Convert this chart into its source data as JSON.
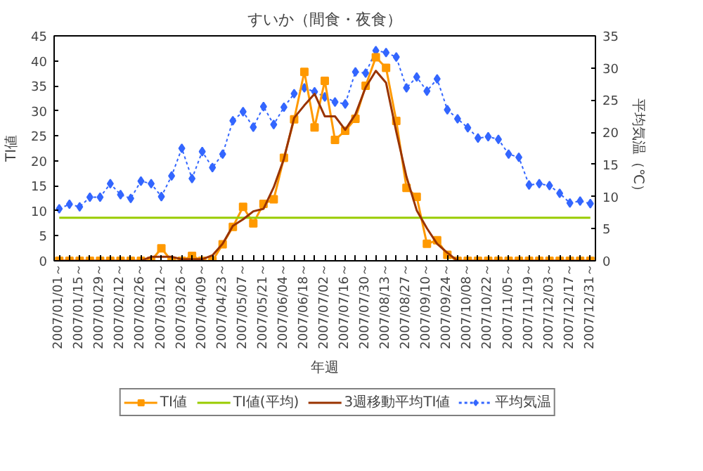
{
  "chart_data": {
    "type": "line",
    "title": "すいか（間食・夜食）",
    "xlabel": "年週",
    "ylabel": "TI値",
    "y2label": "平均気温（℃）",
    "categories": [
      "2007/01/01～",
      null,
      "2007/01/15～",
      null,
      "2007/01/29～",
      null,
      "2007/02/12～",
      null,
      "2007/02/26～",
      null,
      "2007/03/12～",
      null,
      "2007/03/26～",
      null,
      "2007/04/09～",
      null,
      "2007/04/23～",
      null,
      "2007/05/07～",
      null,
      "2007/05/21～",
      null,
      "2007/06/04～",
      null,
      "2007/06/18～",
      null,
      "2007/07/02～",
      null,
      "2007/07/16～",
      null,
      "2007/07/30～",
      null,
      "2007/08/13～",
      null,
      "2007/08/27～",
      null,
      "2007/09/10～",
      null,
      "2007/09/24～",
      null,
      "2007/10/08～",
      null,
      "2007/10/22～",
      null,
      "2007/11/05～",
      null,
      "2007/11/19～",
      null,
      "2007/12/03～",
      null,
      "2007/12/17～",
      null,
      "2007/12/31～"
    ],
    "series": [
      {
        "name": "TI値",
        "color": "#ff9900",
        "marker": "square",
        "line_style": "solid",
        "values": [
          0,
          0,
          0,
          0,
          0,
          0,
          0,
          0,
          0,
          0,
          2.5,
          0,
          0,
          1.0,
          0,
          0,
          3.3,
          6.8,
          10.8,
          7.5,
          11.4,
          12.3,
          20.6,
          28.3,
          37.8,
          26.7,
          36.0,
          24.2,
          26.0,
          28.4,
          35.0,
          40.7,
          38.6,
          28.0,
          14.6,
          12.8,
          3.4,
          4.1,
          1.2,
          0,
          0,
          0,
          0,
          0,
          0,
          0,
          0,
          0,
          0,
          0,
          0,
          0,
          0
        ]
      },
      {
        "name": "TI値(平均)",
        "color": "#99cc00",
        "marker": "none",
        "line_style": "solid",
        "values": [
          8.6,
          8.6,
          8.6,
          8.6,
          8.6,
          8.6,
          8.6,
          8.6,
          8.6,
          8.6,
          8.6,
          8.6,
          8.6,
          8.6,
          8.6,
          8.6,
          8.6,
          8.6,
          8.6,
          8.6,
          8.6,
          8.6,
          8.6,
          8.6,
          8.6,
          8.6,
          8.6,
          8.6,
          8.6,
          8.6,
          8.6,
          8.6,
          8.6,
          8.6,
          8.6,
          8.6,
          8.6,
          8.6,
          8.6,
          8.6,
          8.6,
          8.6,
          8.6,
          8.6,
          8.6,
          8.6,
          8.6,
          8.6,
          8.6,
          8.6,
          8.6,
          8.6,
          8.6
        ]
      },
      {
        "name": "3週移動平均TI値",
        "color": "#993300",
        "marker": "none",
        "line_style": "solid",
        "values": [
          0,
          0,
          0,
          0,
          0,
          0,
          0,
          0,
          0,
          0.8,
          0.8,
          0.8,
          0.3,
          0.3,
          0.3,
          1.1,
          3.4,
          7.0,
          8.3,
          9.9,
          10.4,
          14.7,
          20.4,
          28.6,
          31.1,
          33.4,
          28.9,
          28.9,
          26.2,
          29.3,
          34.7,
          38.0,
          35.6,
          25.8,
          16.8,
          10.1,
          6.5,
          3.4,
          1.6,
          0,
          0,
          0,
          0,
          0,
          0,
          0,
          0,
          0,
          0,
          0,
          0,
          0,
          0
        ]
      },
      {
        "name": "平均気温",
        "color": "#3366ff",
        "marker": "diamond",
        "line_style": "dotted",
        "axis": "y2",
        "values": [
          8.1,
          8.8,
          8.4,
          9.9,
          9.9,
          12.0,
          10.3,
          9.7,
          12.4,
          12.0,
          10.0,
          13.2,
          17.5,
          12.8,
          17.0,
          14.5,
          16.6,
          21.8,
          23.2,
          20.8,
          24.0,
          21.2,
          23.9,
          26.0,
          26.9,
          26.3,
          25.5,
          24.7,
          24.4,
          29.4,
          29.2,
          32.7,
          32.4,
          31.7,
          26.9,
          28.6,
          26.4,
          28.3,
          23.5,
          22.1,
          20.7,
          19.1,
          19.3,
          18.9,
          16.6,
          16.1,
          11.8,
          12.0,
          11.7,
          10.5,
          9.0,
          9.3,
          8.9
        ]
      }
    ],
    "ylim": [
      0,
      45
    ],
    "yticks": [
      0,
      5,
      10,
      15,
      20,
      25,
      30,
      35,
      40,
      45
    ],
    "y2lim": [
      0,
      35
    ],
    "y2ticks": [
      0,
      5,
      10,
      15,
      20,
      25,
      30,
      35
    ],
    "grid": false,
    "legend": "bottom"
  }
}
